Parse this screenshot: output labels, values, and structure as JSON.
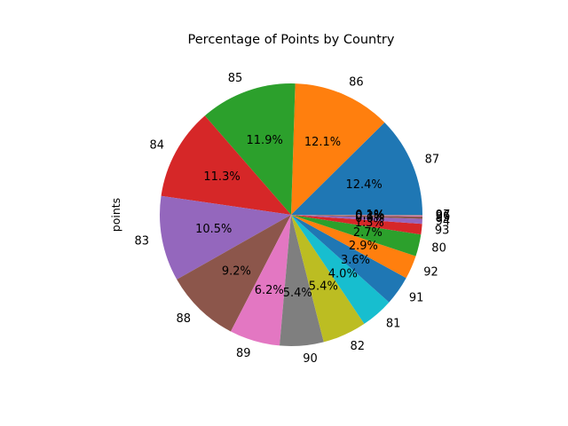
{
  "chart_data": {
    "type": "pie",
    "title": "Percentage of Points by Country",
    "ylabel": "points",
    "start_angle_deg": 0,
    "direction": "counterclockwise",
    "colors": [
      "#1f77b4",
      "#ff7f0e",
      "#2ca02c",
      "#d62728",
      "#9467bd",
      "#8c564b",
      "#e377c2",
      "#7f7f7f",
      "#bcbd22",
      "#17becf"
    ],
    "slices": [
      {
        "label": "87",
        "value": 12.4,
        "pct_label": "12.4%"
      },
      {
        "label": "86",
        "value": 12.1,
        "pct_label": "12.1%"
      },
      {
        "label": "85",
        "value": 11.9,
        "pct_label": "11.9%"
      },
      {
        "label": "84",
        "value": 11.3,
        "pct_label": "11.3%"
      },
      {
        "label": "83",
        "value": 10.5,
        "pct_label": "10.5%"
      },
      {
        "label": "88",
        "value": 9.2,
        "pct_label": "9.2%"
      },
      {
        "label": "89",
        "value": 6.2,
        "pct_label": "6.2%"
      },
      {
        "label": "90",
        "value": 5.4,
        "pct_label": "5.4%"
      },
      {
        "label": "82",
        "value": 5.4,
        "pct_label": "5.4%"
      },
      {
        "label": "81",
        "value": 4.0,
        "pct_label": "4.0%"
      },
      {
        "label": "91",
        "value": 3.6,
        "pct_label": "3.6%"
      },
      {
        "label": "92",
        "value": 2.9,
        "pct_label": "2.9%"
      },
      {
        "label": "80",
        "value": 2.7,
        "pct_label": "2.7%"
      },
      {
        "label": "93",
        "value": 1.3,
        "pct_label": "1.3%"
      },
      {
        "label": "94",
        "value": 0.6,
        "pct_label": "0.6%"
      },
      {
        "label": "95",
        "value": 0.3,
        "pct_label": "0.3%"
      },
      {
        "label": "96",
        "value": 0.1,
        "pct_label": "0.1%"
      },
      {
        "label": "97",
        "value": 0.1,
        "pct_label": "0.1%"
      }
    ]
  }
}
